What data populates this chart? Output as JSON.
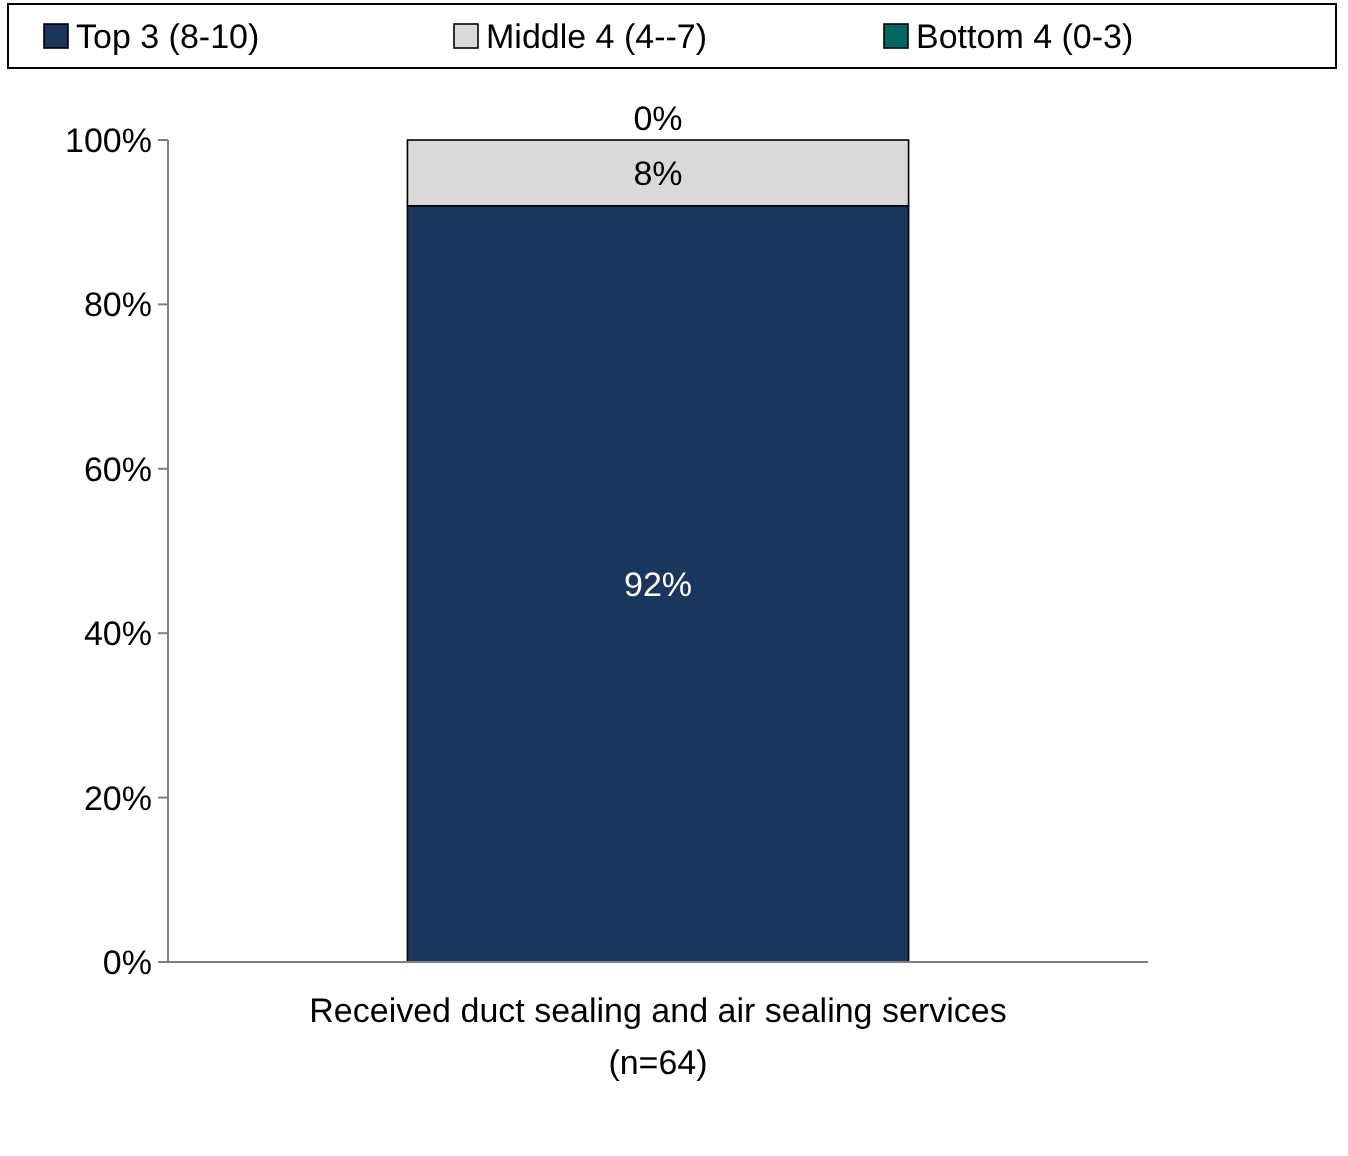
{
  "chart_data": {
    "type": "bar",
    "stacked": true,
    "categories": [
      "Received duct sealing and air sealing services\n(n=64)"
    ],
    "series": [
      {
        "name": "Top 3 (8-10)",
        "color": "#1b365d",
        "values": [
          92
        ],
        "value_labels": [
          "92%"
        ]
      },
      {
        "name": "Middle 4 (4--7)",
        "color": "#d9d9d9",
        "values": [
          8
        ],
        "value_labels": [
          "8%"
        ]
      },
      {
        "name": "Bottom 4 (0-3)",
        "color": "#00695e",
        "values": [
          0
        ],
        "value_labels": [
          "0%"
        ]
      }
    ],
    "ylim": [
      0,
      100
    ],
    "yticks": [
      {
        "value": 0,
        "label": "0%"
      },
      {
        "value": 20,
        "label": "20%"
      },
      {
        "value": 40,
        "label": "40%"
      },
      {
        "value": 60,
        "label": "60%"
      },
      {
        "value": 80,
        "label": "80%"
      },
      {
        "value": 100,
        "label": "100%"
      }
    ],
    "legend": "top",
    "grid": false
  }
}
